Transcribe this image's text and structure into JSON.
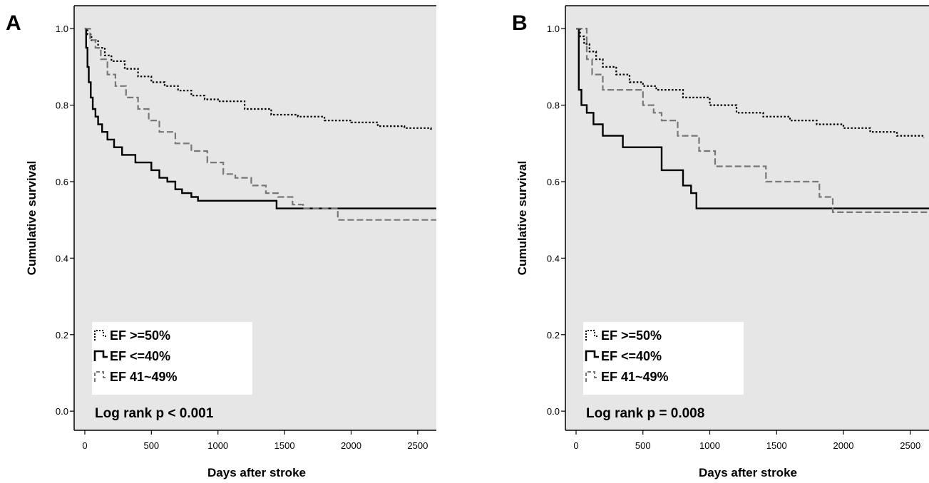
{
  "chart_data": [
    {
      "panel": "A",
      "type": "line",
      "xlabel": "Days after stroke",
      "ylabel": "Cumulative survival",
      "xlim": [
        -80,
        2640
      ],
      "ylim": [
        -0.05,
        1.06
      ],
      "xticks": [
        0,
        500,
        1000,
        1500,
        2000,
        2500
      ],
      "xtick_labels": [
        "0",
        "500",
        "1000",
        "1500",
        "2000",
        "2500"
      ],
      "yticks": [
        0.0,
        0.2,
        0.4,
        0.6,
        0.8,
        1.0
      ],
      "ytick_labels": [
        "0.0",
        "0.2",
        "0.4",
        "0.6",
        "0.8",
        "1.0"
      ],
      "grid": false,
      "plot_background": "#e6e6e6",
      "legend": {
        "position": "bottom-left",
        "entries": [
          {
            "label": "EF >=50%",
            "style": "dotted",
            "color": "#000000"
          },
          {
            "label": "EF <=40%",
            "style": "solid",
            "color": "#000000"
          },
          {
            "label": "EF 41~49%",
            "style": "dashed",
            "color": "#777777"
          }
        ]
      },
      "annotation": "Log rank p < 0.001",
      "series": [
        {
          "name": "EF >=50%",
          "style": "dotted",
          "color": "#000000",
          "x": [
            0,
            20,
            50,
            100,
            150,
            200,
            300,
            400,
            500,
            600,
            700,
            800,
            900,
            1000,
            1200,
            1400,
            1600,
            1800,
            2000,
            2200,
            2400,
            2600
          ],
          "y": [
            1.0,
            0.985,
            0.97,
            0.95,
            0.93,
            0.915,
            0.895,
            0.875,
            0.86,
            0.85,
            0.838,
            0.825,
            0.815,
            0.81,
            0.79,
            0.775,
            0.77,
            0.76,
            0.755,
            0.745,
            0.74,
            0.735
          ]
        },
        {
          "name": "EF <=40%",
          "style": "solid",
          "color": "#000000",
          "x": [
            0,
            10,
            20,
            30,
            45,
            60,
            80,
            100,
            130,
            170,
            220,
            280,
            380,
            500,
            560,
            620,
            680,
            730,
            800,
            850,
            900,
            1000,
            1300,
            1440,
            2640
          ],
          "y": [
            1.0,
            0.95,
            0.9,
            0.86,
            0.82,
            0.79,
            0.77,
            0.75,
            0.73,
            0.71,
            0.69,
            0.67,
            0.65,
            0.63,
            0.61,
            0.6,
            0.58,
            0.57,
            0.56,
            0.55,
            0.55,
            0.55,
            0.55,
            0.53,
            0.53
          ]
        },
        {
          "name": "EF 41~49%",
          "style": "dashed",
          "color": "#777777",
          "x": [
            0,
            40,
            80,
            120,
            170,
            230,
            310,
            400,
            480,
            560,
            680,
            800,
            920,
            1040,
            1130,
            1250,
            1360,
            1450,
            1560,
            1640,
            1900,
            2640
          ],
          "y": [
            1.0,
            0.97,
            0.95,
            0.92,
            0.88,
            0.85,
            0.82,
            0.79,
            0.76,
            0.73,
            0.7,
            0.68,
            0.65,
            0.62,
            0.61,
            0.59,
            0.57,
            0.56,
            0.54,
            0.53,
            0.5,
            0.5
          ]
        }
      ]
    },
    {
      "panel": "B",
      "type": "line",
      "xlabel": "Days after stroke",
      "ylabel": "Cumulative survival",
      "xlim": [
        -80,
        2640
      ],
      "ylim": [
        -0.05,
        1.06
      ],
      "xticks": [
        0,
        500,
        1000,
        1500,
        2000,
        2500
      ],
      "xtick_labels": [
        "0",
        "500",
        "1000",
        "1500",
        "2000",
        "2500"
      ],
      "yticks": [
        0.0,
        0.2,
        0.4,
        0.6,
        0.8,
        1.0
      ],
      "ytick_labels": [
        "0.0",
        "0.2",
        "0.4",
        "0.6",
        "0.8",
        "1.0"
      ],
      "grid": false,
      "plot_background": "#e6e6e6",
      "legend": {
        "position": "bottom-left",
        "entries": [
          {
            "label": "EF >=50%",
            "style": "dotted",
            "color": "#000000"
          },
          {
            "label": "EF <=40%",
            "style": "solid",
            "color": "#000000"
          },
          {
            "label": "EF 41~49%",
            "style": "dashed",
            "color": "#777777"
          }
        ]
      },
      "annotation": "Log rank p = 0.008",
      "series": [
        {
          "name": "EF >=50%",
          "style": "dotted",
          "color": "#000000",
          "x": [
            0,
            30,
            60,
            100,
            150,
            200,
            300,
            400,
            500,
            600,
            800,
            1000,
            1200,
            1400,
            1600,
            1800,
            2000,
            2200,
            2400,
            2600
          ],
          "y": [
            1.0,
            0.98,
            0.96,
            0.94,
            0.92,
            0.9,
            0.88,
            0.86,
            0.85,
            0.84,
            0.82,
            0.8,
            0.78,
            0.77,
            0.76,
            0.75,
            0.74,
            0.73,
            0.72,
            0.715
          ]
        },
        {
          "name": "EF <=40%",
          "style": "solid",
          "color": "#000000",
          "x": [
            0,
            20,
            40,
            80,
            130,
            200,
            350,
            640,
            800,
            860,
            900,
            1200,
            2640
          ],
          "y": [
            1.0,
            0.84,
            0.8,
            0.78,
            0.75,
            0.72,
            0.69,
            0.63,
            0.59,
            0.57,
            0.53,
            0.53,
            0.53
          ]
        },
        {
          "name": "EF 41~49%",
          "style": "dashed",
          "color": "#777777",
          "x": [
            0,
            80,
            120,
            200,
            340,
            500,
            580,
            640,
            760,
            920,
            1040,
            1140,
            1250,
            1420,
            1600,
            1820,
            1920,
            2640
          ],
          "y": [
            1.0,
            0.92,
            0.88,
            0.84,
            0.84,
            0.8,
            0.78,
            0.76,
            0.72,
            0.68,
            0.64,
            0.64,
            0.64,
            0.6,
            0.6,
            0.56,
            0.52,
            0.52
          ]
        }
      ]
    }
  ]
}
